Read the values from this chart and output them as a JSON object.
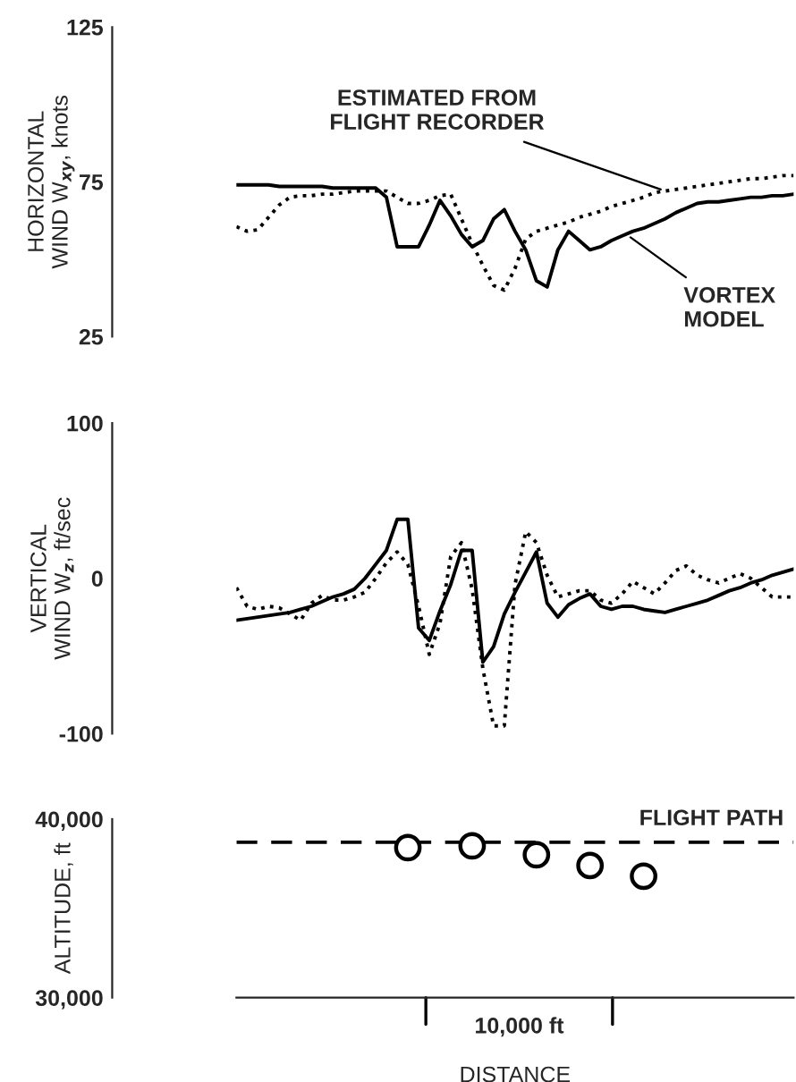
{
  "chart_data": [
    {
      "type": "line",
      "ylabel": "HORIZONTAL\nWIND W$_{xy}$, knots",
      "categories": [
        null,
        null,
        null,
        null,
        null,
        null,
        null,
        null,
        null,
        null,
        null,
        null,
        null,
        null,
        null,
        null,
        null,
        null,
        null,
        null,
        null,
        null,
        null,
        null,
        null,
        null,
        null,
        null,
        null,
        null,
        null,
        null,
        null,
        null,
        null,
        null,
        null,
        null,
        null,
        null,
        null,
        null,
        null,
        null,
        null,
        null,
        null,
        null,
        null,
        null,
        null,
        null,
        null
      ],
      "ylim": [
        25,
        125
      ],
      "yticks": [
        25,
        75,
        125
      ],
      "series": [
        {
          "color": "#000000",
          "line_style": "solid",
          "values": [
            74,
            74,
            74,
            74,
            73.5,
            73.5,
            73.5,
            73.5,
            73.5,
            73,
            73,
            73,
            73,
            73,
            70,
            54,
            54,
            54,
            61,
            69,
            64,
            58,
            54,
            56,
            63,
            66,
            59,
            53,
            43,
            41,
            53,
            59,
            56,
            53,
            54,
            56,
            57.5,
            59,
            60,
            61.5,
            63,
            65,
            66.5,
            68,
            68.5,
            68.5,
            69,
            69.5,
            70,
            70,
            70.5,
            70.5,
            71
          ]
        },
        {
          "color": "#000000",
          "line_style": "dotted",
          "values": [
            60.5,
            59,
            59.5,
            63.5,
            67.5,
            70,
            70.5,
            70.5,
            71,
            71,
            71.5,
            72,
            72,
            72,
            72,
            70,
            68,
            68,
            69,
            70.5,
            71,
            63,
            55,
            48,
            41.5,
            40,
            47,
            56.5,
            59,
            60,
            61,
            62,
            63.5,
            64.5,
            65.5,
            67,
            68,
            69,
            70,
            71.5,
            72,
            72.5,
            73,
            73.5,
            74,
            74.5,
            75,
            75.5,
            76,
            76,
            76.5,
            77,
            77
          ]
        }
      ],
      "annotations": [
        "ESTIMATED FROM\nFLIGHT RECORDER",
        "VORTEX\nMODEL"
      ]
    },
    {
      "type": "line",
      "ylabel": "VERTICAL\nWIND W$_{z}$, ft/sec",
      "categories": [
        null,
        null,
        null,
        null,
        null,
        null,
        null,
        null,
        null,
        null,
        null,
        null,
        null,
        null,
        null,
        null,
        null,
        null,
        null,
        null,
        null,
        null,
        null,
        null,
        null,
        null,
        null,
        null,
        null,
        null,
        null,
        null,
        null,
        null,
        null,
        null,
        null,
        null,
        null,
        null,
        null,
        null,
        null,
        null,
        null,
        null,
        null,
        null,
        null,
        null,
        null,
        null,
        null
      ],
      "ylim": [
        -100,
        100
      ],
      "yticks": [
        -100,
        0,
        100
      ],
      "series": [
        {
          "color": "#000000",
          "line_style": "solid",
          "values": [
            -27,
            -26,
            -25,
            -24,
            -23,
            -22,
            -20,
            -18,
            -15,
            -12,
            -10,
            -7,
            0,
            9,
            18,
            38,
            38,
            -32,
            -40,
            -21,
            -4,
            18,
            18,
            -54,
            -44,
            -23,
            -9,
            4,
            17,
            -16,
            -25,
            -17,
            -13,
            -10,
            -18,
            -20,
            -18,
            -18,
            -20,
            -21,
            -22,
            -20,
            -18,
            -16,
            -14,
            -11,
            -8,
            -6,
            -3,
            -1,
            2,
            4,
            6
          ]
        },
        {
          "color": "#000000",
          "line_style": "dotted",
          "values": [
            -6,
            -18,
            -20,
            -18,
            -19,
            -23,
            -27,
            -16,
            -11,
            -14,
            -14,
            -12,
            -9,
            0,
            10,
            17,
            9,
            -18,
            -49,
            -29,
            14,
            23,
            -7,
            -58,
            -95,
            -95,
            -4,
            30,
            23,
            2,
            -12,
            -10,
            -8,
            -8,
            -14,
            -16,
            -10,
            -2,
            -6,
            -10,
            -3,
            5,
            8,
            2,
            -1,
            -3,
            0,
            3,
            0,
            -6,
            -12,
            -12,
            -12
          ]
        }
      ]
    },
    {
      "type": "line",
      "ylabel": "ALTITUDE, ft",
      "xlabel": "DISTANCE",
      "categories": [
        null,
        null,
        null,
        null,
        null,
        null,
        null,
        null,
        null,
        null,
        null,
        null,
        null,
        null,
        null,
        null,
        null,
        null,
        null,
        null,
        null,
        null,
        null,
        null,
        null,
        null,
        null,
        null,
        null,
        null,
        null,
        null,
        null,
        null,
        null,
        null,
        null,
        null,
        null,
        null,
        null,
        null,
        null,
        null,
        null,
        null,
        null,
        null,
        null,
        null,
        null,
        null,
        null
      ],
      "ylim": [
        30000,
        40000
      ],
      "yticks": [
        {
          "value": 30000,
          "label": "30,000"
        },
        {
          "value": 40000,
          "label": "40,000"
        }
      ],
      "series": [
        {
          "name": "FLIGHT PATH",
          "color": "#000000",
          "line_style": "dashed",
          "values": [
            38700,
            38700,
            38700,
            38700,
            38700,
            38700,
            38700,
            38700,
            38700,
            38700,
            38700,
            38700,
            38700,
            38700,
            38700,
            38700,
            38700,
            38700,
            38700,
            38700,
            38700,
            38700,
            38700,
            38700,
            38700,
            38700,
            38700,
            38700,
            38700,
            38700,
            38700,
            38700,
            38700,
            38700,
            38700,
            38700,
            38700,
            38700,
            38700,
            38700,
            38700,
            38700,
            38700,
            38700,
            38700,
            38700,
            38700,
            38700,
            38700,
            38700,
            38700,
            38700,
            38700
          ]
        },
        {
          "type": "scatter",
          "marker": "circle",
          "color": "#000000",
          "values": [
            null,
            null,
            null,
            null,
            null,
            null,
            null,
            null,
            null,
            null,
            null,
            null,
            null,
            null,
            null,
            null,
            38400,
            null,
            null,
            null,
            null,
            null,
            38500,
            null,
            null,
            null,
            null,
            null,
            38000,
            null,
            null,
            null,
            null,
            37400,
            null,
            null,
            null,
            null,
            36800,
            null,
            null,
            null,
            null,
            null,
            null,
            null,
            null,
            null,
            null,
            null,
            null,
            null,
            null
          ]
        }
      ],
      "annotations": [
        "10,000 ft"
      ]
    }
  ]
}
